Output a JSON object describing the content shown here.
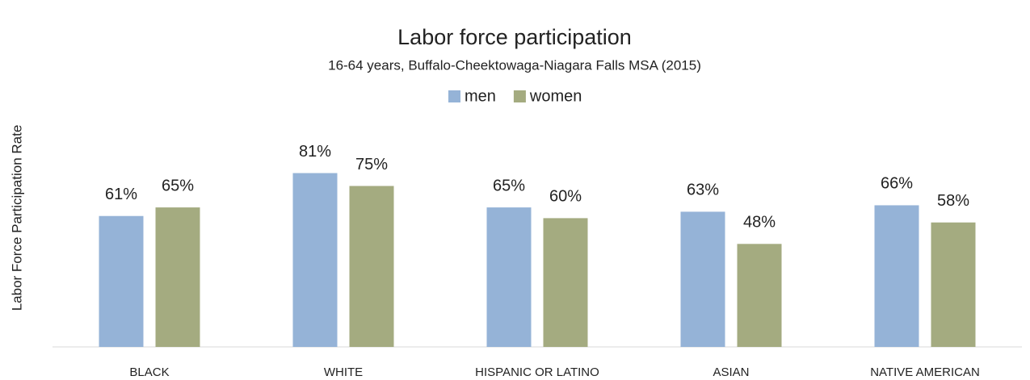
{
  "chart_data": {
    "type": "bar",
    "title": "Labor force participation",
    "subtitle": "16-64 years, Buffalo-Cheektowaga-Niagara Falls MSA (2015)",
    "y_axis_label": "Labor Force Participation Rate",
    "categories": [
      "BLACK",
      "WHITE",
      "HISPANIC OR LATINO",
      "ASIAN",
      "NATIVE AMERICAN"
    ],
    "series": [
      {
        "name": "men",
        "color": "#95b3d7",
        "values": [
          61,
          81,
          65,
          63,
          66
        ],
        "value_labels": [
          "61%",
          "81%",
          "65%",
          "63%",
          "66%"
        ]
      },
      {
        "name": "women",
        "color": "#a4ab80",
        "values": [
          65,
          75,
          60,
          48,
          58
        ],
        "value_labels": [
          "65%",
          "75%",
          "60%",
          "48%",
          "58%"
        ]
      }
    ],
    "ylim": [
      0,
      100
    ],
    "legend": "top"
  }
}
